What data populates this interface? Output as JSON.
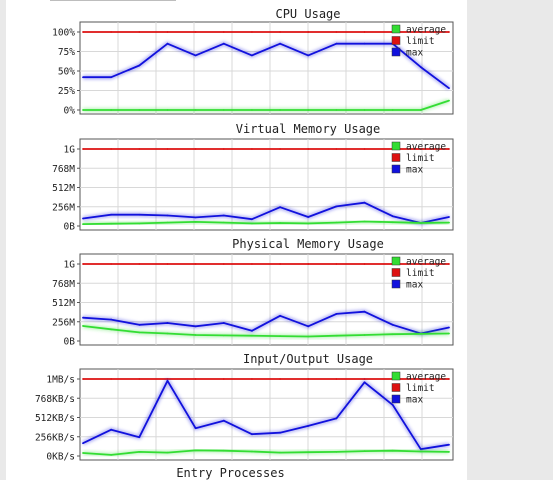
{
  "legend": {
    "average": {
      "label": "average",
      "color": "#33dd33"
    },
    "limit": {
      "label": "limit",
      "color": "#dd1111"
    },
    "max": {
      "label": "max",
      "color": "#1111dd"
    }
  },
  "chart_data": [
    {
      "type": "line",
      "title": "CPU Usage",
      "y_ticks": [
        "100%",
        "75%",
        "50%",
        "25%",
        "0%"
      ],
      "ylim": [
        0,
        100
      ],
      "grid": true,
      "legend_position": "top-right",
      "x": [
        0,
        1,
        2,
        3,
        4,
        5,
        6,
        7,
        8,
        9,
        10,
        11,
        12,
        13
      ],
      "series": [
        {
          "name": "limit",
          "values": [
            100,
            100,
            100,
            100,
            100,
            100,
            100,
            100,
            100,
            100,
            100,
            100,
            100,
            100
          ]
        },
        {
          "name": "max",
          "values": [
            42,
            42,
            57,
            85,
            70,
            85,
            70,
            85,
            70,
            85,
            85,
            85,
            55,
            28
          ]
        },
        {
          "name": "average",
          "values": [
            0,
            0,
            0,
            0,
            0,
            0,
            0,
            0,
            0,
            0,
            0,
            0,
            0,
            12
          ]
        }
      ]
    },
    {
      "type": "line",
      "title": "Virtual Memory Usage",
      "y_ticks": [
        "1G",
        "768M",
        "512M",
        "256M",
        "0B"
      ],
      "ylim": [
        0,
        1024
      ],
      "grid": true,
      "legend_position": "top-right",
      "x": [
        0,
        1,
        2,
        3,
        4,
        5,
        6,
        7,
        8,
        9,
        10,
        11,
        12,
        13
      ],
      "series": [
        {
          "name": "limit",
          "values": [
            1024,
            1024,
            1024,
            1024,
            1024,
            1024,
            1024,
            1024,
            1024,
            1024,
            1024,
            1024,
            1024,
            1024
          ]
        },
        {
          "name": "max",
          "values": [
            100,
            150,
            150,
            140,
            115,
            140,
            90,
            250,
            120,
            260,
            310,
            130,
            40,
            120
          ]
        },
        {
          "name": "average",
          "values": [
            25,
            30,
            35,
            45,
            55,
            45,
            35,
            40,
            35,
            45,
            60,
            50,
            40,
            45
          ]
        }
      ]
    },
    {
      "type": "line",
      "title": "Physical Memory Usage",
      "y_ticks": [
        "1G",
        "768M",
        "512M",
        "256M",
        "0B"
      ],
      "ylim": [
        0,
        1024
      ],
      "grid": true,
      "legend_position": "top-right",
      "x": [
        0,
        1,
        2,
        3,
        4,
        5,
        6,
        7,
        8,
        9,
        10,
        11,
        12,
        13
      ],
      "series": [
        {
          "name": "limit",
          "values": [
            1024,
            1024,
            1024,
            1024,
            1024,
            1024,
            1024,
            1024,
            1024,
            1024,
            1024,
            1024,
            1024,
            1024
          ]
        },
        {
          "name": "max",
          "values": [
            310,
            285,
            215,
            240,
            195,
            240,
            135,
            335,
            195,
            360,
            390,
            215,
            100,
            180
          ]
        },
        {
          "name": "average",
          "values": [
            200,
            155,
            115,
            100,
            80,
            75,
            70,
            65,
            60,
            70,
            80,
            90,
            95,
            100
          ]
        }
      ]
    },
    {
      "type": "line",
      "title": "Input/Output Usage",
      "y_ticks": [
        "1MB/s",
        "768KB/s",
        "512KB/s",
        "256KB/s",
        "0KB/s"
      ],
      "ylim": [
        0,
        1024
      ],
      "grid": true,
      "legend_position": "top-right",
      "x": [
        0,
        1,
        2,
        3,
        4,
        5,
        6,
        7,
        8,
        9,
        10,
        11,
        12,
        13
      ],
      "series": [
        {
          "name": "limit",
          "values": [
            1024,
            1024,
            1024,
            1024,
            1024,
            1024,
            1024,
            1024,
            1024,
            1024,
            1024,
            1024,
            1024,
            1024
          ]
        },
        {
          "name": "max",
          "values": [
            170,
            350,
            250,
            1000,
            370,
            470,
            290,
            310,
            400,
            500,
            980,
            680,
            90,
            150
          ]
        },
        {
          "name": "average",
          "values": [
            40,
            15,
            55,
            45,
            75,
            70,
            60,
            45,
            50,
            55,
            65,
            70,
            60,
            55
          ]
        }
      ]
    }
  ],
  "next_chart_title": "Entry Processes"
}
